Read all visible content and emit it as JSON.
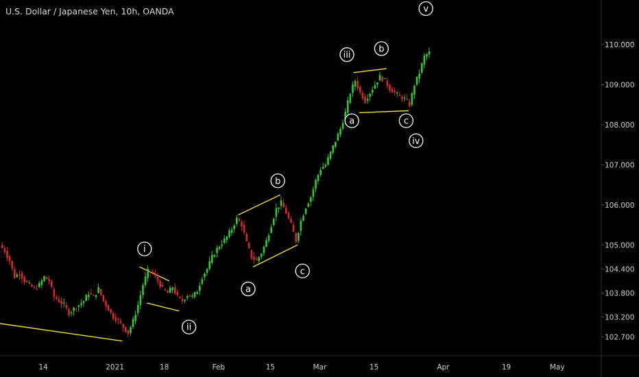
{
  "title": "U.S. Dollar / Japanese Yen, 10h, OANDA",
  "colors": {
    "background": "#000000",
    "up": "#2ecc2e",
    "down": "#d62a2a",
    "trendline": "#f0e040",
    "axis_text": "#cfcfcf",
    "label_circle": "#ffffff"
  },
  "chart_data": {
    "type": "line",
    "title": "U.S. Dollar / Japanese Yen, 10h, OANDA",
    "xlabel": "",
    "ylabel": "",
    "x_ticks": [
      "14",
      "2021",
      "18",
      "Feb",
      "15",
      "Mar",
      "15",
      "Apr",
      "19",
      "May"
    ],
    "y_ticks": [
      110.0,
      109.0,
      108.0,
      107.0,
      106.0,
      105.0,
      104.4,
      103.8,
      103.2,
      102.7
    ],
    "ylim": [
      102.25,
      110.6
    ],
    "grid": false,
    "legend": "none",
    "series": [
      {
        "values": [
          104.85,
          104.6,
          104.2,
          104.3,
          104.1,
          104.0,
          103.9,
          104.0,
          104.2,
          104.1,
          103.7,
          103.6,
          103.5,
          103.3,
          103.4,
          103.5,
          103.6,
          103.8,
          103.7,
          103.9,
          103.6,
          103.4,
          103.2,
          103.1,
          102.95,
          102.8,
          103.1,
          103.5,
          104.0,
          104.35,
          104.3,
          104.1,
          103.9,
          103.8,
          103.95,
          103.7,
          103.6,
          103.75,
          103.7,
          103.85,
          104.2,
          104.4,
          104.7,
          104.9,
          105.05,
          105.2,
          105.4,
          105.65,
          105.5,
          105.05,
          104.7,
          104.6,
          104.8,
          105.1,
          105.5,
          105.9,
          106.05,
          105.8,
          105.5,
          105.1,
          105.6,
          105.95,
          106.2,
          106.6,
          106.9,
          107.0,
          107.3,
          107.6,
          107.9,
          108.3,
          108.8,
          109.1,
          108.8,
          108.6,
          108.8,
          109.0,
          109.2,
          109.1,
          108.9,
          108.8,
          108.7,
          108.65,
          108.5,
          109.0,
          109.3,
          109.7,
          109.8
        ]
      }
    ],
    "annotations": [
      {
        "label": "i",
        "at": [
          29,
          104.9
        ]
      },
      {
        "label": "ii",
        "at": [
          38,
          102.95
        ]
      },
      {
        "label": "a",
        "at": [
          50,
          103.9
        ]
      },
      {
        "label": "b",
        "at": [
          56,
          106.6
        ]
      },
      {
        "label": "c",
        "at": [
          61,
          104.35
        ]
      },
      {
        "label": "iii",
        "at": [
          70,
          109.75
        ]
      },
      {
        "label": "a",
        "at": [
          71,
          108.1
        ]
      },
      {
        "label": "b",
        "at": [
          77,
          109.9
        ]
      },
      {
        "label": "c",
        "at": [
          82,
          108.1
        ]
      },
      {
        "label": "iv",
        "at": [
          84,
          107.6
        ]
      },
      {
        "label": "v",
        "at": [
          86,
          110.9
        ]
      }
    ]
  }
}
